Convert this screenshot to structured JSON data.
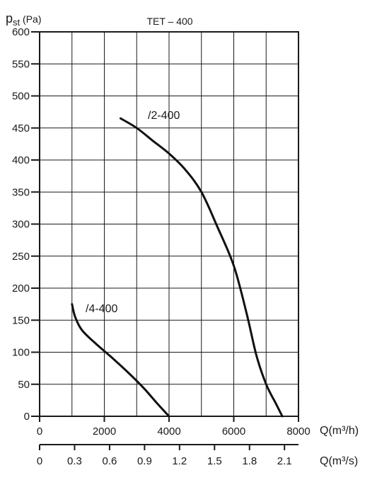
{
  "chart_data": {
    "type": "line",
    "title": "TET – 400",
    "ylabel_main": "p",
    "ylabel_sub": "st",
    "ylabel_unit": " (Pa)",
    "xlabel": "Q(m³/h)",
    "xlabel2": "Q(m³/s)",
    "xlim": [
      0,
      8000
    ],
    "ylim": [
      0,
      600
    ],
    "xlim2": [
      0,
      2.22
    ],
    "grid": true,
    "x_ticks": [
      0,
      2000,
      4000,
      6000,
      8000
    ],
    "x_tick_labels": [
      "0",
      "2000",
      "4000",
      "6000",
      "8000"
    ],
    "y_ticks": [
      0,
      50,
      100,
      150,
      200,
      250,
      300,
      350,
      400,
      450,
      500,
      550,
      600
    ],
    "y_tick_labels": [
      "0",
      "50",
      "100",
      "150",
      "200",
      "250",
      "300",
      "350",
      "400",
      "450",
      "500",
      "550",
      "600"
    ],
    "x2_ticks": [
      0,
      0.3,
      0.6,
      0.9,
      1.2,
      1.5,
      1.8,
      2.1
    ],
    "x2_tick_labels": [
      "0",
      "0.3",
      "0.6",
      "0.9",
      "1.2",
      "1.5",
      "1.8",
      "2.1"
    ],
    "series": [
      {
        "name": "/2-400",
        "x": [
          2500,
          3000,
          3500,
          4000,
          4500,
          5000,
          5500,
          6000,
          6400,
          6700,
          7000,
          7300,
          7500
        ],
        "y": [
          465,
          450,
          430,
          410,
          385,
          350,
          295,
          235,
          160,
          95,
          50,
          20,
          0
        ]
      },
      {
        "name": "/4-400",
        "x": [
          1000,
          1100,
          1300,
          1700,
          2200,
          2700,
          3200,
          3600,
          4000
        ],
        "y": [
          175,
          155,
          135,
          115,
          93,
          70,
          45,
          22,
          0
        ]
      }
    ]
  }
}
